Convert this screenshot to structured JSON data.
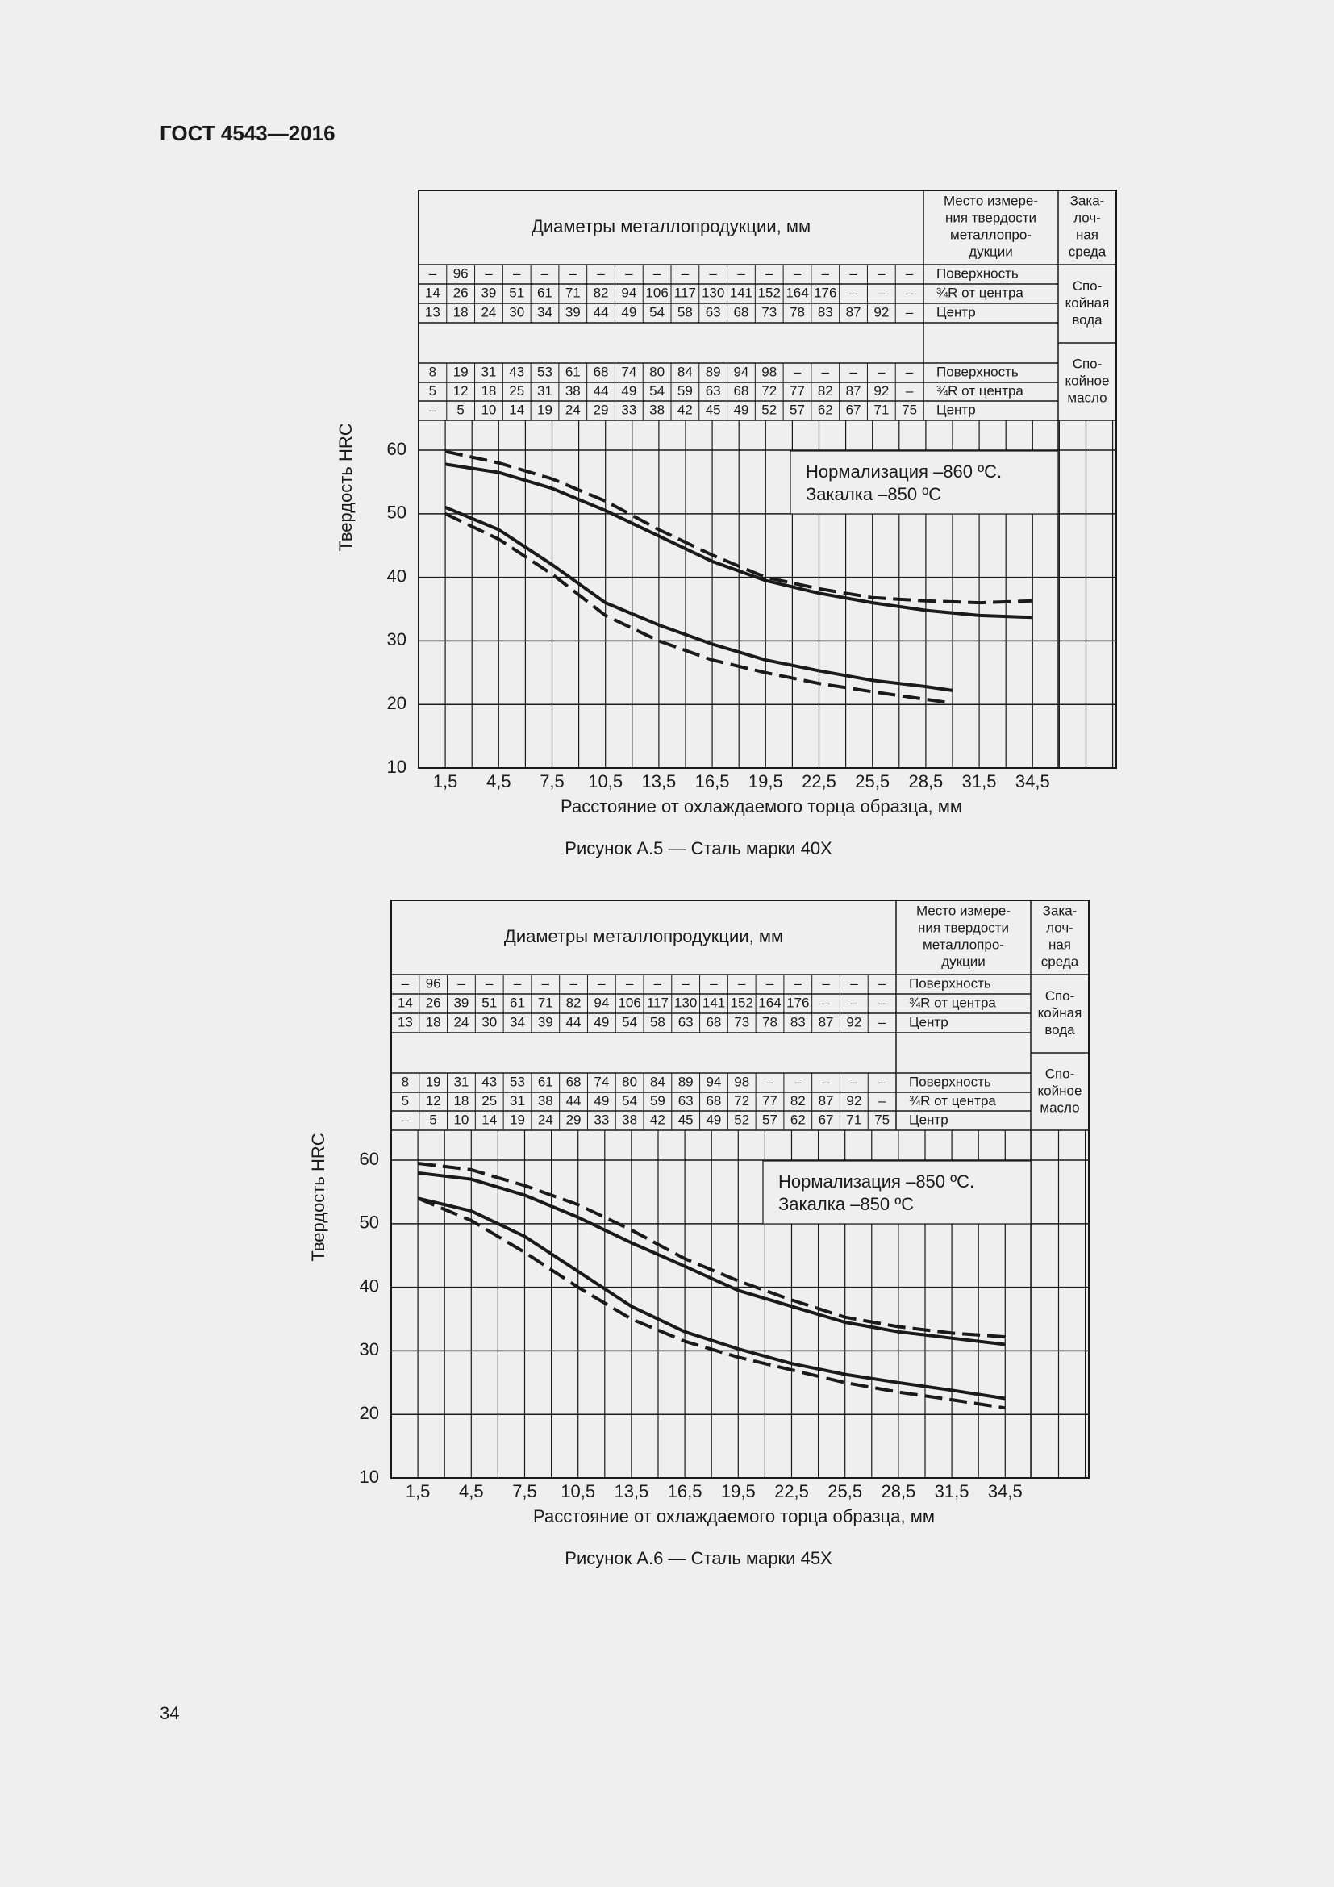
{
  "header": {
    "title": "ГОСТ 4543—2016"
  },
  "page_number": "34",
  "figures": [
    {
      "table": {
        "diameters_header": "Диаметры металлопродукции, мм",
        "place_header": [
          "Место измере-",
          "ния твердости",
          "металлопро-",
          "дукции"
        ],
        "medium_header": [
          "Зака-",
          "лоч-",
          "ная",
          "среда"
        ],
        "groups": [
          {
            "medium": [
              "Спо-",
              "кой­ная",
              "вода"
            ],
            "rows": [
              {
                "place": "Поверхность",
                "cells": [
                  "–",
                  "96",
                  "–",
                  "–",
                  "–",
                  "–",
                  "–",
                  "–",
                  "–",
                  "–",
                  "–",
                  "–",
                  "–",
                  "–",
                  "–",
                  "–",
                  "–",
                  "–"
                ]
              },
              {
                "place": "¾R от центра",
                "cells": [
                  "14",
                  "26",
                  "39",
                  "51",
                  "61",
                  "71",
                  "82",
                  "94",
                  "106",
                  "117",
                  "130",
                  "141",
                  "152",
                  "164",
                  "176",
                  "–",
                  "–",
                  "–"
                ]
              },
              {
                "place": "Центр",
                "cells": [
                  "13",
                  "18",
                  "24",
                  "30",
                  "34",
                  "39",
                  "44",
                  "49",
                  "54",
                  "58",
                  "63",
                  "68",
                  "73",
                  "78",
                  "83",
                  "87",
                  "92",
                  "–"
                ]
              }
            ]
          },
          {
            "medium": [
              "Спо-",
              "кой­ное",
              "масло"
            ],
            "rows": [
              {
                "place": "Поверхность",
                "cells": [
                  "8",
                  "19",
                  "31",
                  "43",
                  "53",
                  "61",
                  "68",
                  "74",
                  "80",
                  "84",
                  "89",
                  "94",
                  "98",
                  "–",
                  "–",
                  "–",
                  "–",
                  "–"
                ]
              },
              {
                "place": "¾R от центра",
                "cells": [
                  "5",
                  "12",
                  "18",
                  "25",
                  "31",
                  "38",
                  "44",
                  "49",
                  "54",
                  "59",
                  "63",
                  "68",
                  "72",
                  "77",
                  "82",
                  "87",
                  "92",
                  "–"
                ]
              },
              {
                "place": "Центр",
                "cells": [
                  "–",
                  "5",
                  "10",
                  "14",
                  "19",
                  "24",
                  "29",
                  "33",
                  "38",
                  "42",
                  "45",
                  "49",
                  "52",
                  "57",
                  "62",
                  "67",
                  "71",
                  "75"
                ]
              }
            ]
          }
        ]
      },
      "chart": {
        "type": "line",
        "y_label": "Твердость HRC",
        "x_label": "Расстояние от охлаждаемого торца образца, мм",
        "annotation": [
          "Нормализация –860 ºС.",
          "Закалка –850 ºС"
        ],
        "xlim": [
          0,
          39.2
        ],
        "ylim": [
          10,
          64.7
        ],
        "xticks": [
          {
            "value": 1.5,
            "label": "1,5"
          },
          {
            "value": 4.5,
            "label": "4,5"
          },
          {
            "value": 7.5,
            "label": "7,5"
          },
          {
            "value": 10.5,
            "label": "10,5"
          },
          {
            "value": 13.5,
            "label": "13,5"
          },
          {
            "value": 16.5,
            "label": "16,5"
          },
          {
            "value": 19.5,
            "label": "19,5"
          },
          {
            "value": 22.5,
            "label": "22,5"
          },
          {
            "value": 25.5,
            "label": "25,5"
          },
          {
            "value": 28.5,
            "label": "28,5"
          },
          {
            "value": 31.5,
            "label": "31,5"
          },
          {
            "value": 34.5,
            "label": "34,5"
          }
        ],
        "yticks": [
          10,
          20,
          30,
          40,
          50,
          60
        ],
        "grid": true,
        "series": [
          {
            "style": "dashed",
            "color": "#1a1a1a",
            "x": [
              1.5,
              4.5,
              7.5,
              10.5,
              13.5,
              16.5,
              19.5,
              22.5,
              25.5,
              28.5,
              31.5,
              34.5
            ],
            "values": [
              59.8,
              58,
              55.5,
              52,
              47.5,
              43.5,
              40,
              38.2,
              36.8,
              36.3,
              36,
              36.3
            ]
          },
          {
            "style": "solid",
            "color": "#1a1a1a",
            "x": [
              1.5,
              4.5,
              7.5,
              10.5,
              13.5,
              16.5,
              19.5,
              22.5,
              25.5,
              28.5,
              31.5,
              34.5
            ],
            "values": [
              57.8,
              56.5,
              54,
              50.5,
              46.5,
              42.5,
              39.5,
              37.5,
              36,
              34.8,
              34,
              33.7
            ]
          },
          {
            "style": "solid",
            "color": "#1a1a1a",
            "x": [
              1.5,
              4.5,
              7.5,
              10.5,
              13.5,
              16.5,
              19.5,
              22.5,
              25.5,
              28.5,
              30
            ],
            "values": [
              51,
              47.5,
              42,
              36,
              32.5,
              29.5,
              27,
              25.3,
              23.8,
              22.8,
              22.2
            ]
          },
          {
            "style": "dashed",
            "color": "#1a1a1a",
            "x": [
              1.5,
              4.5,
              7.5,
              10.5,
              13.5,
              16.5,
              19.5,
              22.5,
              25.5,
              28.5,
              30
            ],
            "values": [
              50,
              46,
              40.5,
              34,
              30,
              27,
              25,
              23.3,
              22,
              20.8,
              20.2
            ]
          }
        ]
      },
      "caption": "Рисунок А.5 — Сталь марки 40Х"
    },
    {
      "table": {
        "diameters_header": "Диаметры металлопродукции, мм",
        "place_header": [
          "Место измере-",
          "ния твердости",
          "металлопро-",
          "дукции"
        ],
        "medium_header": [
          "Зака-",
          "лоч-",
          "ная",
          "среда"
        ],
        "groups": [
          {
            "medium": [
              "Спо-",
              "кой­ная",
              "вода"
            ],
            "rows": [
              {
                "place": "Поверхность",
                "cells": [
                  "–",
                  "96",
                  "–",
                  "–",
                  "–",
                  "–",
                  "–",
                  "–",
                  "–",
                  "–",
                  "–",
                  "–",
                  "–",
                  "–",
                  "–",
                  "–",
                  "–",
                  "–"
                ]
              },
              {
                "place": "¾R от центра",
                "cells": [
                  "14",
                  "26",
                  "39",
                  "51",
                  "61",
                  "71",
                  "82",
                  "94",
                  "106",
                  "117",
                  "130",
                  "141",
                  "152",
                  "164",
                  "176",
                  "–",
                  "–",
                  "–"
                ]
              },
              {
                "place": "Центр",
                "cells": [
                  "13",
                  "18",
                  "24",
                  "30",
                  "34",
                  "39",
                  "44",
                  "49",
                  "54",
                  "58",
                  "63",
                  "68",
                  "73",
                  "78",
                  "83",
                  "87",
                  "92",
                  "–"
                ]
              }
            ]
          },
          {
            "medium": [
              "Спо-",
              "кой­ное",
              "масло"
            ],
            "rows": [
              {
                "place": "Поверхность",
                "cells": [
                  "8",
                  "19",
                  "31",
                  "43",
                  "53",
                  "61",
                  "68",
                  "74",
                  "80",
                  "84",
                  "89",
                  "94",
                  "98",
                  "–",
                  "–",
                  "–",
                  "–",
                  "–"
                ]
              },
              {
                "place": "¾R от центра",
                "cells": [
                  "5",
                  "12",
                  "18",
                  "25",
                  "31",
                  "38",
                  "44",
                  "49",
                  "54",
                  "59",
                  "63",
                  "68",
                  "72",
                  "77",
                  "82",
                  "87",
                  "92",
                  "–"
                ]
              },
              {
                "place": "Центр",
                "cells": [
                  "–",
                  "5",
                  "10",
                  "14",
                  "19",
                  "24",
                  "29",
                  "33",
                  "38",
                  "42",
                  "45",
                  "49",
                  "52",
                  "57",
                  "62",
                  "67",
                  "71",
                  "75"
                ]
              }
            ]
          }
        ]
      },
      "chart": {
        "type": "line",
        "y_label": "Твердость HRC",
        "x_label": "Расстояние от охлаждаемого торца образца, мм",
        "annotation": [
          "Нормализация –850 ºС.",
          "Закалка –850 ºС"
        ],
        "xlim": [
          0,
          39.2
        ],
        "ylim": [
          10,
          64.7
        ],
        "xticks": [
          {
            "value": 1.5,
            "label": "1,5"
          },
          {
            "value": 4.5,
            "label": "4,5"
          },
          {
            "value": 7.5,
            "label": "7,5"
          },
          {
            "value": 10.5,
            "label": "10,5"
          },
          {
            "value": 13.5,
            "label": "13,5"
          },
          {
            "value": 16.5,
            "label": "16,5"
          },
          {
            "value": 19.5,
            "label": "19,5"
          },
          {
            "value": 22.5,
            "label": "22,5"
          },
          {
            "value": 25.5,
            "label": "25,5"
          },
          {
            "value": 28.5,
            "label": "28,5"
          },
          {
            "value": 31.5,
            "label": "31,5"
          },
          {
            "value": 34.5,
            "label": "34,5"
          }
        ],
        "yticks": [
          10,
          20,
          30,
          40,
          50,
          60
        ],
        "grid": true,
        "series": [
          {
            "style": "dashed",
            "color": "#1a1a1a",
            "x": [
              1.5,
              4.5,
              7.5,
              10.5,
              13.5,
              16.5,
              19.5,
              22.5,
              25.5,
              28.5,
              31.5,
              34.5
            ],
            "values": [
              59.5,
              58.5,
              56,
              53,
              49,
              44.5,
              41,
              38,
              35.3,
              33.8,
              32.8,
              32.2
            ]
          },
          {
            "style": "solid",
            "color": "#1a1a1a",
            "x": [
              1.5,
              4.5,
              7.5,
              10.5,
              13.5,
              16.5,
              19.5,
              22.5,
              25.5,
              28.5,
              31.5,
              34.5
            ],
            "values": [
              58,
              57,
              54.5,
              51,
              47,
              43.3,
              39.5,
              37,
              34.5,
              33,
              32,
              31
            ]
          },
          {
            "style": "solid",
            "color": "#1a1a1a",
            "x": [
              1.5,
              4.5,
              7.5,
              10.5,
              13.5,
              16.5,
              19.5,
              22.5,
              25.5,
              28.5,
              31.5,
              34.5
            ],
            "values": [
              54,
              52,
              48,
              42.5,
              37,
              33,
              30.3,
              28,
              26.3,
              25,
              23.8,
              22.5
            ]
          },
          {
            "style": "dashed",
            "color": "#1a1a1a",
            "x": [
              1.5,
              4.5,
              7.5,
              10.5,
              13.5,
              16.5,
              19.5,
              22.5,
              25.5,
              28.5,
              31.5,
              34.5
            ],
            "values": [
              54,
              50.5,
              45.5,
              40,
              35,
              31.5,
              29,
              27,
              25,
              23.5,
              22.3,
              21
            ]
          }
        ]
      },
      "caption": "Рисунок А.6 — Сталь марки 45Х"
    }
  ]
}
